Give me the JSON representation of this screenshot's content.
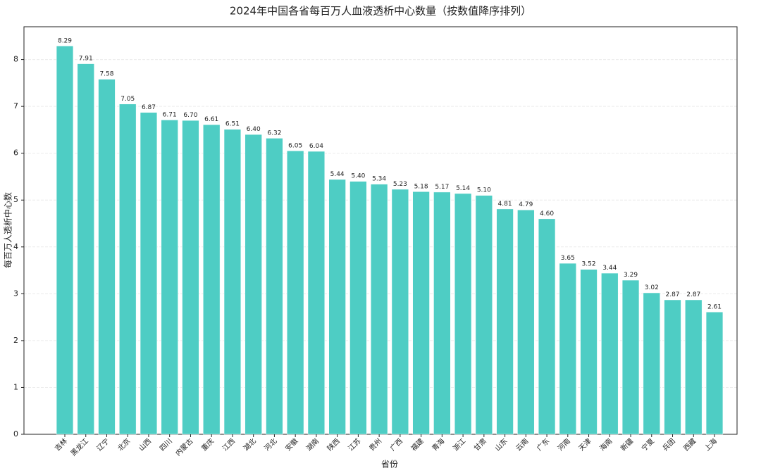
{
  "chart_data": {
    "type": "bar",
    "title": "2024年中国各省每百万人血液透析中心数量（按数值降序排列）",
    "x_label": "省份",
    "y_label": "每百万人透析中心数",
    "categories": [
      "吉林",
      "黑龙江",
      "辽宁",
      "北京",
      "山西",
      "四川",
      "内蒙古",
      "重庆",
      "江西",
      "湖北",
      "河北",
      "安徽",
      "湖南",
      "陕西",
      "江苏",
      "贵州",
      "广西",
      "福建",
      "青海",
      "浙江",
      "甘肃",
      "山东",
      "云南",
      "广东",
      "河南",
      "天津",
      "海南",
      "新疆",
      "宁夏",
      "兵团",
      "西藏",
      "上海"
    ],
    "values": [
      8.29,
      7.91,
      7.58,
      7.05,
      6.87,
      6.71,
      6.7,
      6.61,
      6.51,
      6.4,
      6.32,
      6.05,
      6.04,
      5.44,
      5.4,
      5.34,
      5.23,
      5.18,
      5.17,
      5.14,
      5.1,
      4.81,
      4.79,
      4.6,
      3.65,
      3.52,
      3.44,
      3.29,
      3.02,
      2.87,
      2.87,
      2.61
    ],
    "value_labels": [
      "8.29",
      "7.91",
      "7.58",
      "7.05",
      "6.87",
      "6.71",
      "6.70",
      "6.61",
      "6.51",
      "6.40",
      "6.32",
      "6.05",
      "6.04",
      "5.44",
      "5.40",
      "5.34",
      "5.23",
      "5.18",
      "5.17",
      "5.14",
      "5.10",
      "4.81",
      "4.79",
      "4.60",
      "3.65",
      "3.52",
      "3.44",
      "3.29",
      "3.02",
      "2.87",
      "2.87",
      "2.61"
    ],
    "color": "#4ecdc4",
    "ylim": [
      0,
      8.7
    ],
    "yticks": [
      0,
      1,
      2,
      3,
      4,
      5,
      6,
      7,
      8
    ],
    "grid": true
  }
}
